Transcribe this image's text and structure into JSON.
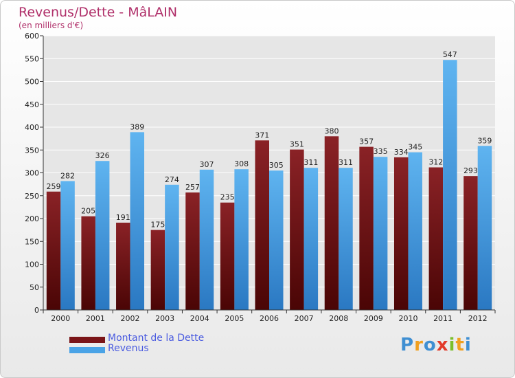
{
  "chart_data": {
    "type": "bar",
    "title": "Revenus/Dette - MâLAIN",
    "subtitle": "(en milliers d'€)",
    "categories": [
      "2000",
      "2001",
      "2002",
      "2003",
      "2004",
      "2005",
      "2006",
      "2007",
      "2008",
      "2009",
      "2010",
      "2011",
      "2012"
    ],
    "series": [
      {
        "name": "Montant de la Dette",
        "color": "#7a1417",
        "values": [
          259,
          205,
          191,
          175,
          257,
          235,
          371,
          351,
          380,
          357,
          334,
          312,
          293
        ]
      },
      {
        "name": "Revenus",
        "color": "#4aa3e6",
        "values": [
          282,
          326,
          389,
          274,
          307,
          308,
          305,
          311,
          311,
          335,
          345,
          547,
          359
        ]
      }
    ],
    "ylim": [
      0,
      600
    ],
    "yticks": [
      0,
      50,
      100,
      150,
      200,
      250,
      300,
      350,
      400,
      450,
      500,
      550,
      600
    ],
    "grid": true,
    "legend_position": "bottom-left"
  },
  "logo": {
    "letters": [
      {
        "ch": "P",
        "color": "#3f8fd2"
      },
      {
        "ch": "r",
        "color": "#f0a020"
      },
      {
        "ch": "o",
        "color": "#3f8fd2"
      },
      {
        "ch": "x",
        "color": "#e23a2a"
      },
      {
        "ch": "i",
        "color": "#7bbf2a"
      },
      {
        "ch": "t",
        "color": "#f0a020"
      },
      {
        "ch": "i",
        "color": "#3f8fd2"
      }
    ]
  }
}
